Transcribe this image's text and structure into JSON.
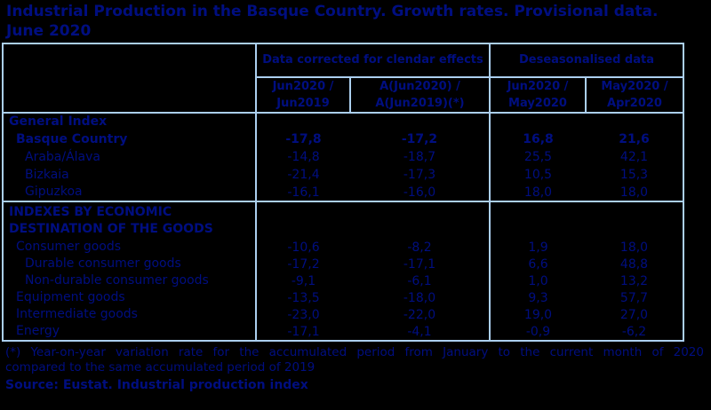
{
  "colors": {
    "background": "#000000",
    "text_navy": "#000e80",
    "table_border": "#abcfef"
  },
  "title": {
    "line1": "Industrial Production in the Basque Country. Growth rates. Provisional data.",
    "line2": "June 2020"
  },
  "table": {
    "corner_label": "",
    "group_headers": [
      "Data corrected for clendar effects",
      "Deseasonalised data"
    ],
    "column_headers": [
      "Jun2020 / Jun2019",
      "A(Jun2020) / A(Jun2019)(*)",
      "Jun2020 / May2020",
      "May2020 / Apr2020"
    ],
    "sections": [
      {
        "rows": [
          {
            "label": "General Index",
            "bold": true,
            "indent": 0,
            "values": [
              "",
              "",
              "",
              ""
            ]
          },
          {
            "label": "Basque Country",
            "bold": true,
            "indent": 1,
            "values": [
              "-17,8",
              "-17,2",
              "16,8",
              "21,6"
            ]
          },
          {
            "label": "Araba/Álava",
            "bold": false,
            "indent": 2,
            "values": [
              "-14,8",
              "-18,7",
              "25,5",
              "42,1"
            ]
          },
          {
            "label": "Bizkaia",
            "bold": false,
            "indent": 2,
            "values": [
              "-21,4",
              "-17,3",
              "10,5",
              "15,3"
            ]
          },
          {
            "label": "Gipuzkoa",
            "bold": false,
            "indent": 2,
            "values": [
              "-16,1",
              "-16,0",
              "18,0",
              "18,0"
            ]
          }
        ]
      },
      {
        "rows": [
          {
            "label": "INDEXES BY ECONOMIC DESTINATION OF THE GOODS",
            "bold": true,
            "indent": 0,
            "tall": true,
            "values": [
              "",
              "",
              "",
              ""
            ]
          },
          {
            "label": "Consumer goods",
            "bold": false,
            "indent": 1,
            "values": [
              "-10,6",
              "-8,2",
              "1,9",
              "18,0"
            ]
          },
          {
            "label": "Durable consumer goods",
            "bold": false,
            "indent": 2,
            "values": [
              "-17,2",
              "-17,1",
              "6,6",
              "48,8"
            ]
          },
          {
            "label": "Non-durable consumer goods",
            "bold": false,
            "indent": 2,
            "values": [
              "-9,1",
              "-6,1",
              "1,0",
              "13,2"
            ]
          },
          {
            "label": "Equipment goods",
            "bold": false,
            "indent": 1,
            "values": [
              "-13,5",
              "-18,0",
              "9,3",
              "57,7"
            ]
          },
          {
            "label": "Intermediate goods",
            "bold": false,
            "indent": 1,
            "values": [
              "-23,0",
              "-22,0",
              "19,0",
              "27,0"
            ]
          },
          {
            "label": "Energy",
            "bold": false,
            "indent": 1,
            "values": [
              "-17,1",
              "-4,1",
              "-0,9",
              "-6,2"
            ]
          }
        ]
      }
    ]
  },
  "footnote": {
    "line1": "(*) Year-on-year variation rate for the accumulated period from January to the current month of 2020",
    "line2": "compared to the same accumulated period of 2019"
  },
  "source": "Source: Eustat. Industrial production index"
}
